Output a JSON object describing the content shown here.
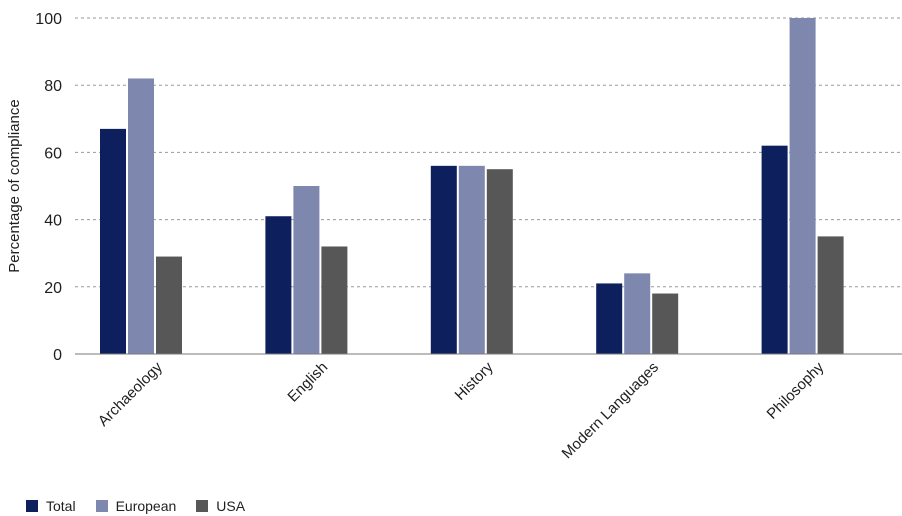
{
  "chart_data": {
    "type": "bar",
    "ylabel": "Percentage of compliance",
    "xlabel": "",
    "ylim": [
      0,
      100
    ],
    "yticks": [
      0,
      20,
      40,
      60,
      80,
      100
    ],
    "grid": true,
    "legend_position": "bottom-left",
    "categories": [
      "Archaeology",
      "English",
      "History",
      "Modern Languages",
      "Philosophy"
    ],
    "series": [
      {
        "name": "Total",
        "color": "#0d1f5c",
        "values": [
          67,
          41,
          56,
          21,
          62
        ]
      },
      {
        "name": "European",
        "color": "#7e87ae",
        "values": [
          82,
          50,
          56,
          24,
          100
        ]
      },
      {
        "name": "USA",
        "color": "#575757",
        "values": [
          29,
          32,
          55,
          18,
          35
        ]
      }
    ]
  }
}
